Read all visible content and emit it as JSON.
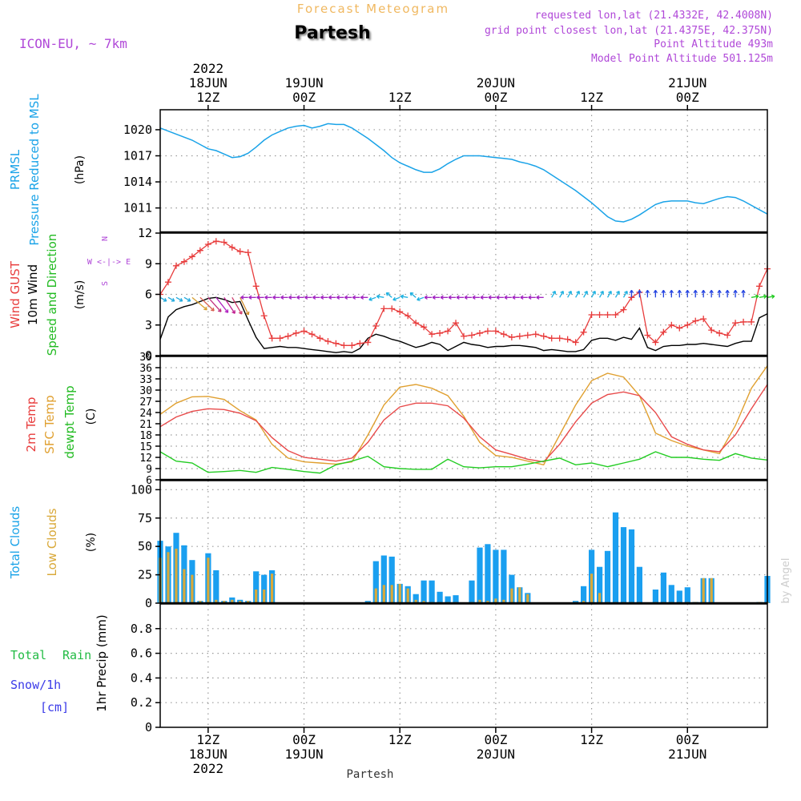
{
  "header": {
    "super_title": "Forecast Meteogram",
    "location": "Partesh",
    "model": "ICON-EU, ~ 7km",
    "requested": "requested lon,lat (21.4332E, 42.4008N)",
    "grid_point": "grid point closest lon,lat (21.4375E, 42.375N)",
    "point_altitude": "Point Altitude 493m",
    "model_altitude": "Model Point Altitude 501.125m",
    "credit": "by Angel",
    "footer_location": "Partesh"
  },
  "time_axis": {
    "top_labels": [
      {
        "h": 12,
        "lines": [
          "2022",
          "18JUN",
          "12Z"
        ]
      },
      {
        "h": 24,
        "lines": [
          "19JUN",
          "00Z"
        ]
      },
      {
        "h": 36,
        "lines": [
          "12Z"
        ]
      },
      {
        "h": 48,
        "lines": [
          "20JUN",
          "00Z"
        ]
      },
      {
        "h": 60,
        "lines": [
          "12Z"
        ]
      },
      {
        "h": 72,
        "lines": [
          "21JUN",
          "00Z"
        ]
      }
    ],
    "bottom_labels": [
      {
        "h": 12,
        "lines": [
          "12Z",
          "18JUN",
          "2022"
        ]
      },
      {
        "h": 24,
        "lines": [
          "00Z",
          "19JUN"
        ]
      },
      {
        "h": 36,
        "lines": [
          "12Z"
        ]
      },
      {
        "h": 48,
        "lines": [
          "00Z",
          "20JUN"
        ]
      },
      {
        "h": 60,
        "lines": [
          "12Z"
        ]
      },
      {
        "h": 72,
        "lines": [
          "00Z",
          "21JUN"
        ]
      }
    ],
    "start_hour": 6,
    "end_hour": 82
  },
  "panel_labels": {
    "pressure": [
      "PRMSL",
      "Pressure Reduced to MSL",
      "(hPa)"
    ],
    "wind": [
      "Wind GUST",
      "10m Wind",
      "Speed and Direction",
      "(m/s)"
    ],
    "compass": [
      "N",
      "W <-|-> E",
      "S"
    ],
    "temp": [
      "2m Temp",
      "SFC Temp",
      "dewpt Temp",
      "(C)"
    ],
    "clouds": [
      "Total Clouds",
      "Low Clouds",
      "(%)"
    ],
    "precip": [
      "Total",
      "Rain",
      "Snow/1h",
      "[cm]",
      "1hr Precip (mm)"
    ]
  },
  "colors": {
    "pressure": "#1aa3e8",
    "gust": "#e83c3c",
    "wind": "#000000",
    "temp2m": "#e84a4a",
    "sfc": "#e0a030",
    "dew": "#22cc22",
    "cloud_total": "#1a9ff0",
    "cloud_low": "#d9a93a",
    "title_orange": "#f0b860",
    "meta_purple": "#b048d8",
    "rain_label": "#22bb44",
    "snow_label": "#3a3ae8"
  },
  "chart_data": [
    {
      "type": "line",
      "title": "PRMSL Pressure Reduced to MSL",
      "ylabel": "(hPa)",
      "ylim": [
        1008.2,
        1022.3
      ],
      "yticks": [
        1011,
        1014,
        1017,
        1020
      ],
      "x": [
        6,
        8,
        10,
        12,
        13,
        14,
        15,
        16,
        17,
        18,
        19,
        20,
        21,
        22,
        23,
        24,
        25,
        26,
        27,
        28,
        29,
        30,
        31,
        32,
        33,
        34,
        35,
        36,
        37,
        38,
        39,
        40,
        41,
        42,
        43,
        44,
        45,
        46,
        47,
        48,
        49,
        50,
        51,
        52,
        53,
        54,
        55,
        56,
        57,
        58,
        59,
        60,
        61,
        62,
        63,
        64,
        65,
        66,
        67,
        68,
        69,
        70,
        71,
        72,
        73,
        74,
        75,
        76,
        77,
        78,
        79,
        80,
        81,
        82
      ],
      "values": [
        1020.2,
        1019.5,
        1018.8,
        1017.8,
        1017.6,
        1017.2,
        1016.8,
        1016.9,
        1017.3,
        1018.0,
        1018.8,
        1019.4,
        1019.8,
        1020.2,
        1020.4,
        1020.5,
        1020.2,
        1020.4,
        1020.7,
        1020.6,
        1020.6,
        1020.2,
        1019.6,
        1019.0,
        1018.3,
        1017.6,
        1016.8,
        1016.2,
        1015.8,
        1015.4,
        1015.1,
        1015.1,
        1015.5,
        1016.1,
        1016.6,
        1017.0,
        1017.0,
        1017.0,
        1016.9,
        1016.8,
        1016.7,
        1016.6,
        1016.3,
        1016.1,
        1015.8,
        1015.4,
        1014.8,
        1014.2,
        1013.6,
        1013.0,
        1012.3,
        1011.6,
        1010.8,
        1010.0,
        1009.5,
        1009.4,
        1009.7,
        1010.2,
        1010.8,
        1011.4,
        1011.7,
        1011.8,
        1011.8,
        1011.8,
        1011.6,
        1011.5,
        1011.8,
        1012.1,
        1012.3,
        1012.2,
        1011.8,
        1011.3,
        1010.8,
        1010.3
      ]
    },
    {
      "type": "line",
      "title": "Wind GUST / 10m Wind Speed and Direction",
      "ylabel": "(m/s)",
      "ylim": [
        0,
        12
      ],
      "yticks": [
        0,
        3,
        6,
        9,
        12
      ],
      "x": [
        6,
        7,
        8,
        9,
        10,
        11,
        12,
        13,
        14,
        15,
        16,
        17,
        18,
        19,
        20,
        21,
        22,
        23,
        24,
        25,
        26,
        27,
        28,
        29,
        30,
        31,
        32,
        33,
        34,
        35,
        36,
        37,
        38,
        39,
        40,
        41,
        42,
        43,
        44,
        45,
        46,
        47,
        48,
        49,
        50,
        51,
        52,
        53,
        54,
        55,
        56,
        57,
        58,
        59,
        60,
        61,
        62,
        63,
        64,
        65,
        66,
        67,
        68,
        69,
        70,
        71,
        72,
        73,
        74,
        75,
        76,
        77,
        78,
        79,
        80,
        81,
        82
      ],
      "series": [
        {
          "name": "Wind GUST",
          "values": [
            6.0,
            7.2,
            8.8,
            9.2,
            9.7,
            10.3,
            10.9,
            11.2,
            11.1,
            10.6,
            10.2,
            10.1,
            6.8,
            3.9,
            1.7,
            1.7,
            1.9,
            2.2,
            2.4,
            2.1,
            1.7,
            1.4,
            1.2,
            1.0,
            1.0,
            1.2,
            1.3,
            2.9,
            4.6,
            4.6,
            4.3,
            3.9,
            3.2,
            2.8,
            2.1,
            2.2,
            2.4,
            3.2,
            1.9,
            2.0,
            2.2,
            2.4,
            2.4,
            2.1,
            1.8,
            1.9,
            2.0,
            2.1,
            1.9,
            1.7,
            1.7,
            1.6,
            1.3,
            2.3,
            4.0,
            4.0,
            4.0,
            4.0,
            4.5,
            5.7,
            6.2,
            2.0,
            1.3,
            2.3,
            3.0,
            2.7,
            3.0,
            3.4,
            3.6,
            2.5,
            2.2,
            2.0,
            3.2,
            3.3,
            3.3,
            6.8,
            8.5
          ]
        },
        {
          "name": "10m Wind",
          "values": [
            1.6,
            3.8,
            4.5,
            4.8,
            5.0,
            5.3,
            5.6,
            5.7,
            5.5,
            5.2,
            5.3,
            3.5,
            1.8,
            0.7,
            0.8,
            0.9,
            0.8,
            0.8,
            0.7,
            0.6,
            0.5,
            0.4,
            0.3,
            0.4,
            0.3,
            0.7,
            1.7,
            2.1,
            1.9,
            1.6,
            1.4,
            1.1,
            0.8,
            1.0,
            1.3,
            1.1,
            0.5,
            0.9,
            1.3,
            1.1,
            1.0,
            0.8,
            0.9,
            0.9,
            1.0,
            1.0,
            0.9,
            0.8,
            0.5,
            0.6,
            0.5,
            0.4,
            0.4,
            0.6,
            1.5,
            1.7,
            1.7,
            1.5,
            1.8,
            1.6,
            2.7,
            0.8,
            0.5,
            0.9,
            1.0,
            1.0,
            1.1,
            1.1,
            1.2,
            1.1,
            1.0,
            0.9,
            1.2,
            1.4,
            1.4,
            3.7,
            4.1
          ]
        }
      ]
    },
    {
      "type": "line",
      "title": "2m Temp / SFC Temp / dewpt Temp",
      "ylabel": "(C)",
      "ylim": [
        6,
        39
      ],
      "yticks": [
        6,
        9,
        12,
        15,
        18,
        21,
        24,
        27,
        30,
        33,
        36,
        39
      ],
      "x": [
        6,
        8,
        10,
        12,
        14,
        16,
        18,
        20,
        22,
        24,
        26,
        28,
        30,
        32,
        34,
        36,
        38,
        40,
        42,
        44,
        46,
        48,
        50,
        52,
        54,
        56,
        58,
        60,
        62,
        64,
        66,
        68,
        70,
        72,
        74,
        76,
        78,
        80,
        82
      ],
      "series": [
        {
          "name": "2m Temp",
          "values": [
            20.2,
            22.8,
            24.3,
            25.0,
            24.8,
            23.8,
            21.8,
            17.3,
            13.8,
            12.0,
            11.5,
            11.0,
            11.8,
            16.0,
            22.0,
            25.5,
            26.5,
            26.5,
            25.8,
            22.5,
            17.5,
            14.0,
            12.8,
            11.5,
            10.8,
            15.5,
            21.5,
            26.5,
            28.8,
            29.5,
            28.5,
            24.0,
            17.5,
            15.5,
            14.0,
            13.5,
            18.0,
            25.0,
            31.5
          ]
        },
        {
          "name": "SFC Temp",
          "values": [
            23.5,
            26.5,
            28.2,
            28.3,
            27.5,
            24.5,
            22.0,
            15.5,
            11.8,
            10.8,
            10.5,
            10.2,
            10.8,
            18.0,
            26.0,
            30.8,
            31.5,
            30.5,
            28.5,
            23.0,
            16.0,
            12.5,
            12.0,
            11.0,
            10.0,
            18.0,
            26.0,
            32.5,
            34.5,
            33.5,
            28.5,
            18.5,
            16.5,
            15.0,
            14.0,
            13.0,
            20.5,
            30.5,
            36.5
          ]
        },
        {
          "name": "dewpt Temp",
          "values": [
            13.5,
            11.0,
            10.5,
            8.0,
            8.2,
            8.5,
            8.0,
            9.3,
            8.8,
            8.2,
            7.8,
            10.0,
            11.0,
            12.3,
            9.5,
            9.0,
            8.8,
            8.8,
            11.5,
            9.5,
            9.2,
            9.5,
            9.5,
            10.2,
            11.0,
            11.8,
            10.0,
            10.5,
            9.5,
            10.5,
            11.5,
            13.5,
            12.0,
            12.0,
            11.5,
            11.2,
            13.0,
            11.8,
            11.3
          ]
        }
      ]
    },
    {
      "type": "bar",
      "title": "Total Clouds / Low Clouds",
      "ylabel": "(%)",
      "ylim": [
        0,
        108
      ],
      "yticks": [
        0,
        25,
        50,
        75,
        100
      ],
      "x": [
        6,
        7,
        8,
        9,
        10,
        11,
        12,
        13,
        14,
        15,
        16,
        17,
        18,
        19,
        20,
        21,
        22,
        23,
        24,
        25,
        26,
        27,
        28,
        29,
        30,
        31,
        32,
        33,
        34,
        35,
        36,
        37,
        38,
        39,
        40,
        41,
        42,
        43,
        44,
        45,
        46,
        47,
        48,
        49,
        50,
        51,
        52,
        53,
        54,
        55,
        56,
        57,
        58,
        59,
        60,
        61,
        62,
        63,
        64,
        65,
        66,
        67,
        68,
        69,
        70,
        71,
        72,
        73,
        74,
        75,
        76,
        77,
        78,
        79,
        80,
        81,
        82
      ],
      "series": [
        {
          "name": "Total Clouds",
          "values": [
            55,
            50,
            62,
            51,
            38,
            2,
            44,
            29,
            2,
            5,
            3,
            2,
            28,
            25,
            29,
            0,
            0,
            0,
            0,
            0,
            0,
            0,
            0,
            0,
            0,
            0,
            2,
            37,
            42,
            41,
            17,
            15,
            8,
            20,
            20,
            10,
            6,
            7,
            0,
            20,
            49,
            52,
            47,
            47,
            25,
            14,
            9,
            0,
            0,
            0,
            0,
            0,
            2,
            15,
            47,
            32,
            46,
            80,
            67,
            65,
            32,
            0,
            12,
            27,
            16,
            11,
            14,
            1,
            22,
            22,
            0,
            0,
            0,
            0,
            0,
            1,
            24
          ]
        },
        {
          "name": "Low Clouds",
          "values": [
            40,
            45,
            48,
            30,
            25,
            2,
            40,
            3,
            2,
            3,
            2,
            2,
            12,
            12,
            26,
            0,
            0,
            0,
            0,
            0,
            0,
            0,
            0,
            0,
            0,
            0,
            1,
            13,
            16,
            16,
            17,
            13,
            3,
            2,
            1,
            1,
            1,
            1,
            0,
            1,
            3,
            2,
            4,
            3,
            13,
            14,
            8,
            0,
            0,
            0,
            0,
            0,
            1,
            2,
            26,
            9,
            1,
            1,
            1,
            1,
            1,
            0,
            1,
            1,
            1,
            1,
            1,
            1,
            22,
            22,
            0,
            0,
            0,
            0,
            0,
            1,
            1
          ]
        }
      ]
    },
    {
      "type": "bar",
      "title": "1hr Precip (mm)",
      "ylabel": "1hr Precip (mm)",
      "ylim": [
        0,
        1.0
      ],
      "yticks": [
        0,
        0.2,
        0.4,
        0.6,
        0.8
      ],
      "ytick_labels": [
        "0",
        "0.2",
        "0.4",
        "0.6",
        "0.8"
      ],
      "series": [
        {
          "name": "Total Rain",
          "values": []
        },
        {
          "name": "Snow/1h",
          "values": []
        }
      ]
    }
  ]
}
